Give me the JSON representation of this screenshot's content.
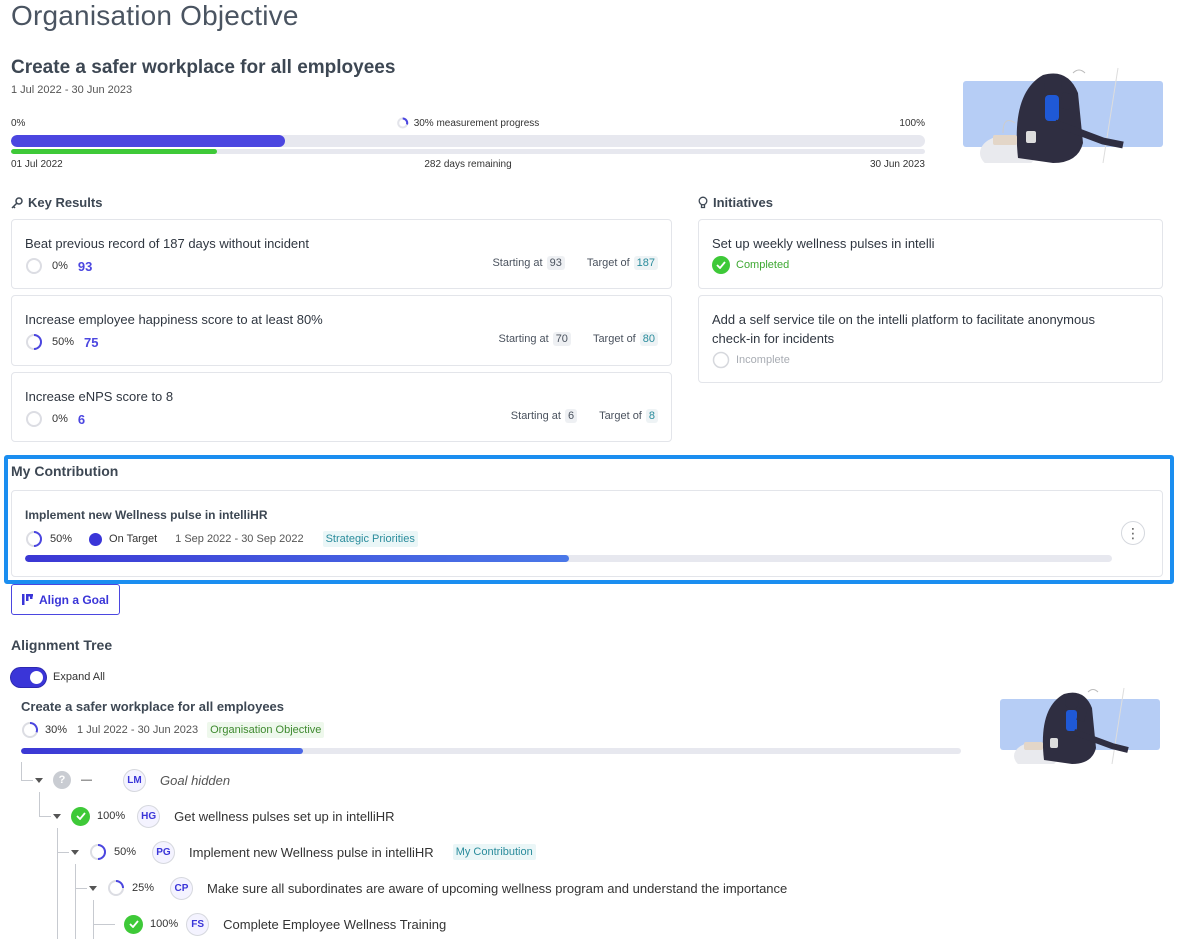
{
  "page": {
    "heading": "Organisation Objective"
  },
  "objective": {
    "title": "Create a safer workplace for all employees",
    "dates": "1 Jul 2022 - 30 Jun 2023",
    "scale_start": "0%",
    "scale_end": "100%",
    "measurement_label": "30% measurement progress",
    "progress": 30,
    "time_elapsed_fraction": 0.225,
    "start_date": "01 Jul 2022",
    "days_remaining": "282 days remaining",
    "end_date": "30 Jun 2023"
  },
  "key_results": {
    "heading": "Key Results",
    "items": [
      {
        "title": "Beat previous record of 187 days without incident",
        "pct": "0%",
        "progress": 0,
        "value": "93",
        "starting_label": "Starting at",
        "starting": "93",
        "target_label": "Target of",
        "target": "187"
      },
      {
        "title": "Increase employee happiness score to at least 80%",
        "pct": "50%",
        "progress": 50,
        "value": "75",
        "starting_label": "Starting at",
        "starting": "70",
        "target_label": "Target of",
        "target": "80"
      },
      {
        "title": "Increase eNPS score to 8",
        "pct": "0%",
        "progress": 0,
        "value": "6",
        "starting_label": "Starting at",
        "starting": "6",
        "target_label": "Target of",
        "target": "8"
      }
    ]
  },
  "initiatives": {
    "heading": "Initiatives",
    "items": [
      {
        "title": "Set up weekly wellness pulses in intelli",
        "status": "Completed"
      },
      {
        "title_line1": "Add a self service tile on the intelli platform to facilitate anonymous",
        "title_line2": "check-in for incidents",
        "status": "Incomplete"
      }
    ]
  },
  "contribution": {
    "heading": "My Contribution",
    "goal_name": "Implement new Wellness pulse in intelliHR",
    "pct": "50%",
    "progress": 50,
    "status": "On Target",
    "dates": "1 Sep 2022 - 30 Sep 2022",
    "tag": "Strategic Priorities",
    "menu_icon": "more-vertical-icon"
  },
  "align_button": {
    "label": "Align a Goal",
    "icon": "align-icon"
  },
  "alignment_tree": {
    "heading": "Alignment Tree",
    "expand_all_label": "Expand All",
    "expand_all_on": true,
    "root": {
      "title": "Create a safer workplace for all employees",
      "pct": "30%",
      "progress": 30,
      "dates": "1 Jul 2022 - 30 Jun 2023",
      "tag": "Organisation Objective"
    },
    "nodes": [
      {
        "pct": "—",
        "avatar": "LM",
        "name": "Goal hidden",
        "status_icon": "question-icon"
      },
      {
        "pct": "100%",
        "avatar": "HG",
        "name": "Get wellness pulses set up in intelliHR",
        "status_icon": "check-icon"
      },
      {
        "pct": "50%",
        "avatar": "PG",
        "name": "Implement new Wellness pulse in intelliHR",
        "status_icon": "progress-ring-icon",
        "progress": 50,
        "tag": "My Contribution"
      },
      {
        "pct": "25%",
        "avatar": "CP",
        "name": "Make sure all subordinates are aware of upcoming wellness program and understand the importance",
        "status_icon": "progress-ring-icon",
        "progress": 25
      },
      {
        "pct": "100%",
        "avatar": "FS",
        "name": "Complete Employee Wellness Training",
        "status_icon": "check-icon"
      }
    ]
  },
  "colors": {
    "primary": "#4b46e0",
    "success": "#3ec938",
    "highlight_border": "#1b8ef0",
    "teal_tag": "#2a8c9c",
    "illustration_bg": "#b6cdf5"
  }
}
